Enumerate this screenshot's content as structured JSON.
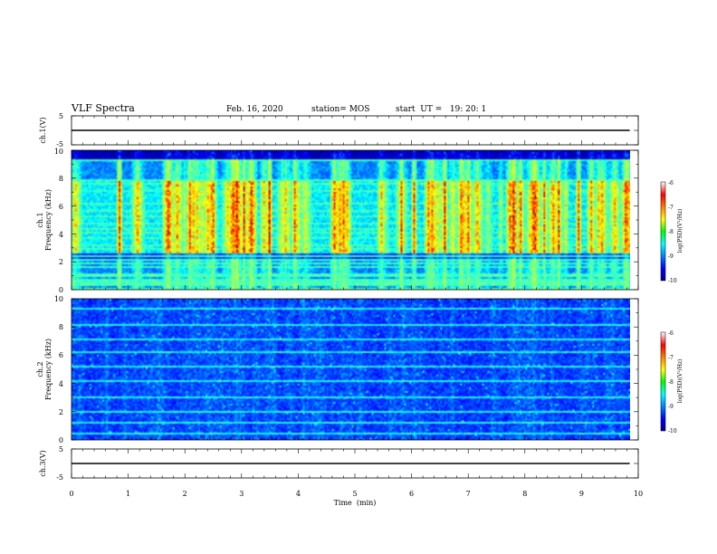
{
  "header": {
    "title": "VLF Spectra",
    "date": "Feb. 16, 2020",
    "station": "station= MOS",
    "start": "start  UT =   19: 20: 1"
  },
  "chart_data": [
    {
      "type": "line",
      "panel": "ch1-waveform",
      "ylabel": "ch.1(V)",
      "ylim": [
        -5,
        5
      ],
      "y_ticks": [
        "5",
        "-5"
      ],
      "xlim": [
        0,
        10
      ],
      "series": [
        {
          "x": [
            0,
            9.85
          ],
          "y": [
            0,
            0
          ]
        }
      ]
    },
    {
      "type": "heatmap",
      "panel": "ch1-spectrogram",
      "ylabel_lines": [
        "ch.1",
        "Frequency (kHz)"
      ],
      "ylim": [
        0,
        10
      ],
      "y_ticks": [
        "0",
        "2",
        "4",
        "6",
        "8",
        "10"
      ],
      "xlim": [
        0,
        10
      ],
      "data_extent_min": 9.85,
      "colorbar": {
        "label": "log(PSD)(V²/Hz)",
        "range": [
          -10,
          -6
        ],
        "ticks": [
          "-6",
          "-7",
          "-8",
          "-9",
          "-10"
        ]
      }
    },
    {
      "type": "heatmap",
      "panel": "ch2-spectrogram",
      "ylabel_lines": [
        "ch.2",
        "Frequency (kHz)"
      ],
      "ylim": [
        0,
        10
      ],
      "y_ticks": [
        "0",
        "2",
        "4",
        "6",
        "8",
        "10"
      ],
      "xlim": [
        0,
        10
      ],
      "data_extent_min": 9.85,
      "colorbar": {
        "label": "log(PSD)(V²/Hz)",
        "range": [
          -10,
          -6
        ],
        "ticks": [
          "-6",
          "-7",
          "-8",
          "-9",
          "-10"
        ]
      }
    },
    {
      "type": "line",
      "panel": "ch3-waveform",
      "ylabel": "ch.3(V)",
      "ylim": [
        -5,
        5
      ],
      "y_ticks": [
        "5",
        "-5"
      ],
      "xlim": [
        0,
        10
      ],
      "xlabel": "Time  (min)",
      "x_ticks": [
        "0",
        "1",
        "2",
        "3",
        "4",
        "5",
        "6",
        "7",
        "8",
        "9",
        "10"
      ],
      "series": [
        {
          "x": [
            0,
            9.85
          ],
          "y": [
            0,
            0
          ]
        }
      ]
    }
  ]
}
